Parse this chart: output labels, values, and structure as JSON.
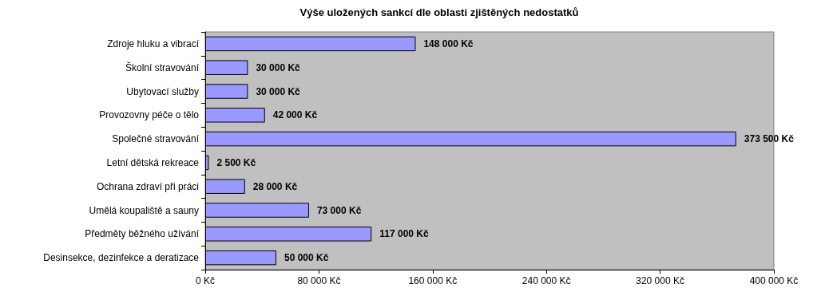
{
  "chart_data": {
    "type": "bar",
    "orientation": "horizontal",
    "title": "Výše uložených sankcí dle oblasti zjištěných nedostatků",
    "categories": [
      "Zdroje hluku a vibrací",
      "Školní stravování",
      "Ubytovací služby",
      "Provozovny péče o tělo",
      "Společné stravování",
      "Letní dětská rekreace",
      "Ochrana zdraví při práci",
      "Umělá koupaliště a sauny",
      "Předměty běžného užívání",
      "Desinsekce, dezinfekce a deratizace"
    ],
    "values": [
      148000,
      30000,
      30000,
      42000,
      373500,
      2500,
      28000,
      73000,
      117000,
      50000
    ],
    "value_labels": [
      "148 000 Kč",
      "30 000 Kč",
      "30 000 Kč",
      "42 000 Kč",
      "373 500 Kč",
      "2 500 Kč",
      "28 000 Kč",
      "73 000 Kč",
      "117 000 Kč",
      "50 000 Kč"
    ],
    "color": "#9999ff",
    "xlim": [
      0,
      400000
    ],
    "xticks": [
      {
        "value": 0,
        "label": "0 Kč"
      },
      {
        "value": 80000,
        "label": "80 000 Kč"
      },
      {
        "value": 160000,
        "label": "160 000 Kč"
      },
      {
        "value": 240000,
        "label": "240 000 Kč"
      },
      {
        "value": 320000,
        "label": "320 000 Kč"
      },
      {
        "value": 400000,
        "label": "400 000 Kč"
      }
    ],
    "grid": false
  }
}
